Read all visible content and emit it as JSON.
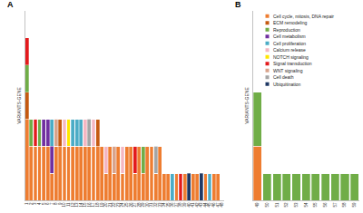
{
  "chart_data": [
    {
      "type": "bar",
      "title": "A",
      "ylabel": "VARIANTS-GENE",
      "stacked": true,
      "tick_labels": "x",
      "grid": false,
      "ylim": [
        0,
        7
      ],
      "categories": [
        "1",
        "2",
        "3",
        "4",
        "5",
        "6",
        "7",
        "8",
        "9",
        "10",
        "11",
        "12",
        "13",
        "14",
        "15",
        "16",
        "17",
        "18",
        "19",
        "20",
        "21",
        "22",
        "23",
        "24",
        "25",
        "26",
        "27",
        "28",
        "29",
        "30",
        "31",
        "32",
        "33",
        "34",
        "35",
        "36",
        "37",
        "38",
        "39",
        "40",
        "41",
        "42",
        "43",
        "44",
        "45",
        "46",
        "47",
        "48"
      ],
      "series": [
        {
          "name": "Cell cycle, mitosis, DNA repair",
          "color": "#ee7d31",
          "values": [
            3,
            2,
            2,
            2,
            2,
            2,
            1,
            2,
            2,
            2,
            2,
            2,
            2,
            2,
            2,
            2,
            2,
            2,
            2,
            1,
            2,
            1,
            2,
            1,
            2,
            2,
            1,
            2,
            1,
            2,
            2,
            1,
            2,
            1,
            1,
            0,
            1,
            0,
            1,
            0,
            1,
            1,
            0,
            1,
            0,
            1,
            1,
            0
          ]
        },
        {
          "name": "ECM remodeling",
          "color": "#c55a11",
          "values": [
            1,
            0,
            0,
            0,
            0,
            0,
            0,
            0,
            1,
            0,
            0,
            0,
            0,
            0,
            0,
            0,
            0,
            1,
            0,
            0,
            0,
            0,
            0,
            0,
            0,
            0,
            0,
            0,
            0,
            0,
            0,
            0,
            0,
            0,
            0,
            0,
            0,
            0,
            0,
            0,
            0,
            0,
            0,
            0,
            0,
            0,
            0,
            0
          ]
        },
        {
          "name": "Reproduction",
          "color": "#70ad47",
          "values": [
            1,
            1,
            0,
            1,
            0,
            0,
            0,
            0,
            0,
            0,
            0,
            0,
            0,
            0,
            0,
            0,
            0,
            0,
            0,
            0,
            0,
            0,
            0,
            0,
            0,
            0,
            0,
            0,
            1,
            0,
            0,
            0,
            0,
            0,
            0,
            0,
            0,
            0,
            0,
            0,
            0,
            0,
            0,
            0,
            0,
            0,
            0,
            0
          ]
        },
        {
          "name": "Cell metabolism",
          "color": "#7030a0",
          "values": [
            0,
            0,
            0,
            0,
            1,
            1,
            1,
            0,
            0,
            0,
            0,
            0,
            0,
            0,
            0,
            0,
            0,
            0,
            0,
            0,
            0,
            0,
            0,
            0,
            0,
            0,
            0,
            0,
            0,
            0,
            0,
            0,
            0,
            0,
            0,
            0,
            0,
            0,
            0,
            0,
            0,
            0,
            0,
            0,
            0,
            0,
            0,
            0
          ]
        },
        {
          "name": "Cell proliferation",
          "color": "#4bacc6",
          "values": [
            0,
            0,
            0,
            0,
            0,
            0,
            1,
            0,
            0,
            0,
            0,
            1,
            1,
            1,
            0,
            0,
            0,
            0,
            0,
            0,
            0,
            0,
            0,
            0,
            0,
            0,
            0,
            0,
            0,
            0,
            0,
            0,
            0,
            0,
            0,
            1,
            0,
            0,
            0,
            0,
            0,
            0,
            0,
            0,
            1,
            0,
            0,
            0
          ]
        },
        {
          "name": "Calcium release",
          "color": "#f4b6c2",
          "values": [
            0,
            0,
            0,
            0,
            0,
            0,
            0,
            0,
            0,
            1,
            0,
            0,
            0,
            0,
            1,
            0,
            1,
            0,
            0,
            1,
            0,
            0,
            0,
            1,
            0,
            0,
            0,
            0,
            0,
            0,
            0,
            0,
            0,
            0,
            0,
            0,
            0,
            0,
            0,
            0,
            0,
            0,
            0,
            0,
            0,
            0,
            0,
            0
          ]
        },
        {
          "name": "NOTCH signaling",
          "color": "#ffe600",
          "values": [
            0,
            0,
            0,
            0,
            0,
            0,
            0,
            0,
            0,
            0,
            1,
            0,
            0,
            0,
            0,
            0,
            0,
            0,
            0,
            0,
            0,
            0,
            0,
            0,
            0,
            0,
            0,
            0,
            0,
            0,
            0,
            0,
            0,
            0,
            0,
            0,
            0,
            0,
            0,
            0,
            0,
            0,
            0,
            0,
            0,
            0,
            0,
            0
          ]
        },
        {
          "name": "Signal transduction",
          "color": "#e31a1c",
          "values": [
            1,
            0,
            1,
            0,
            0,
            0,
            0,
            0,
            0,
            0,
            0,
            0,
            0,
            0,
            0,
            0,
            0,
            0,
            0,
            0,
            0,
            0,
            0,
            0,
            0,
            0,
            1,
            0,
            0,
            0,
            0,
            0,
            0,
            0,
            0,
            0,
            0,
            1,
            0,
            0,
            0,
            0,
            0,
            0,
            0,
            0,
            0,
            0
          ]
        },
        {
          "name": "WNT signaling",
          "color": "#d9a38b",
          "values": [
            0,
            0,
            0,
            0,
            0,
            0,
            0,
            1,
            0,
            0,
            0,
            0,
            0,
            0,
            0,
            0,
            0,
            0,
            0,
            0,
            0,
            1,
            0,
            0,
            0,
            0,
            0,
            0,
            0,
            0,
            0,
            0,
            0,
            0,
            0,
            0,
            0,
            0,
            0,
            0,
            0,
            0,
            0,
            0,
            0,
            0,
            0,
            0
          ]
        },
        {
          "name": "Cell death",
          "color": "#a5a5a5",
          "values": [
            0,
            0,
            0,
            0,
            0,
            0,
            0,
            0,
            0,
            0,
            0,
            0,
            0,
            0,
            0,
            1,
            0,
            0,
            0,
            0,
            0,
            0,
            0,
            0,
            0,
            0,
            0,
            0,
            0,
            0,
            0,
            1,
            0,
            0,
            0,
            0,
            0,
            0,
            0,
            0,
            0,
            0,
            0,
            0,
            0,
            0,
            0,
            0
          ]
        },
        {
          "name": "Ubiquitination",
          "color": "#1f3864",
          "values": [
            0,
            0,
            0,
            0,
            0,
            0,
            0,
            0,
            0,
            0,
            0,
            0,
            0,
            0,
            0,
            0,
            0,
            0,
            0,
            0,
            0,
            0,
            0,
            0,
            0,
            0,
            0,
            0,
            0,
            0,
            0,
            0,
            0,
            0,
            0,
            0,
            0,
            0,
            0,
            1,
            0,
            0,
            1,
            0,
            0,
            0,
            0,
            0
          ]
        }
      ]
    },
    {
      "type": "bar",
      "title": "B",
      "ylabel": "VARIANTS-GENE",
      "stacked": true,
      "tick_labels": "x",
      "grid": false,
      "legend": "top left",
      "ylim": [
        0,
        7
      ],
      "categories": [
        "49",
        "50",
        "51",
        "52",
        "53",
        "54",
        "55",
        "56",
        "57",
        "58",
        "59"
      ],
      "series": [
        {
          "name": "Cell cycle, mitosis, DNA repair",
          "color": "#ee7d31",
          "values": [
            2,
            0,
            0,
            0,
            0,
            0,
            0,
            0,
            0,
            0,
            0
          ]
        },
        {
          "name": "ECM remodeling",
          "color": "#c55a11",
          "values": [
            0,
            0,
            0,
            0,
            0,
            0,
            0,
            0,
            0,
            0,
            0
          ]
        },
        {
          "name": "Reproduction",
          "color": "#70ad47",
          "values": [
            2,
            1,
            1,
            1,
            1,
            1,
            1,
            1,
            1,
            1,
            1
          ]
        },
        {
          "name": "Cell metabolism",
          "color": "#7030a0",
          "values": [
            0,
            0,
            0,
            0,
            0,
            0,
            0,
            0,
            0,
            0,
            0
          ]
        },
        {
          "name": "Cell proliferation",
          "color": "#4bacc6",
          "values": [
            0,
            0,
            0,
            0,
            0,
            0,
            0,
            0,
            0,
            0,
            0
          ]
        },
        {
          "name": "Calcium release",
          "color": "#f4b6c2",
          "values": [
            0,
            0,
            0,
            0,
            0,
            0,
            0,
            0,
            0,
            0,
            0
          ]
        },
        {
          "name": "NOTCH signaling",
          "color": "#ffe600",
          "values": [
            0,
            0,
            0,
            0,
            0,
            0,
            0,
            0,
            0,
            0,
            0
          ]
        },
        {
          "name": "Signal transduction",
          "color": "#e31a1c",
          "values": [
            0,
            0,
            0,
            0,
            0,
            0,
            0,
            0,
            0,
            0,
            0
          ]
        },
        {
          "name": "WNT signaling",
          "color": "#d9a38b",
          "values": [
            0,
            0,
            0,
            0,
            0,
            0,
            0,
            0,
            0,
            0,
            0
          ]
        },
        {
          "name": "Cell death",
          "color": "#a5a5a5",
          "values": [
            0,
            0,
            0,
            0,
            0,
            0,
            0,
            0,
            0,
            0,
            0
          ]
        },
        {
          "name": "Ubiquitination",
          "color": "#1f3864",
          "values": [
            0,
            0,
            0,
            0,
            0,
            0,
            0,
            0,
            0,
            0,
            0
          ]
        }
      ]
    }
  ]
}
